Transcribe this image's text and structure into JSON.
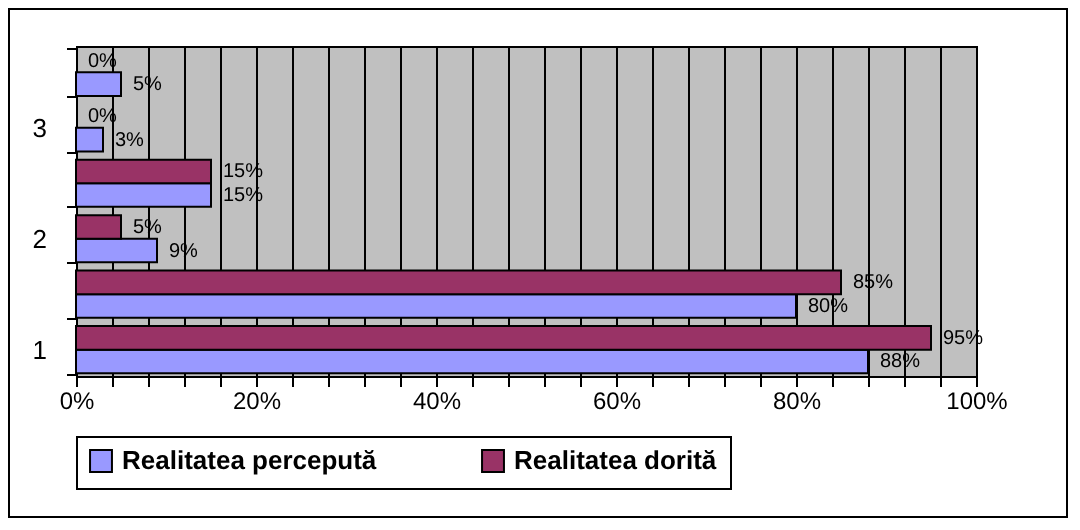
{
  "chart_data": {
    "type": "bar",
    "orientation": "horizontal",
    "categories": [
      null,
      "3",
      null,
      "2",
      null,
      "1"
    ],
    "series": [
      {
        "name": "Realitatea percepută",
        "color": "#9999ff",
        "values": [
          5,
          3,
          15,
          9,
          80,
          88
        ],
        "value_labels": [
          "5%",
          "3%",
          "15%",
          "9%",
          "80%",
          "88%"
        ]
      },
      {
        "name": "Realitatea dorită",
        "color": "#993366",
        "values": [
          0,
          0,
          15,
          5,
          85,
          95
        ],
        "value_labels": [
          "0%",
          "0%",
          "15%",
          "5%",
          "85%",
          "95%"
        ]
      }
    ],
    "xlim": [
      0,
      100
    ],
    "xticks": [
      {
        "value": 0,
        "label": "0%"
      },
      {
        "value": 4,
        "label": null
      },
      {
        "value": 8,
        "label": null
      },
      {
        "value": 12,
        "label": null
      },
      {
        "value": 16,
        "label": null
      },
      {
        "value": 20,
        "label": "20%"
      },
      {
        "value": 24,
        "label": null
      },
      {
        "value": 28,
        "label": null
      },
      {
        "value": 32,
        "label": null
      },
      {
        "value": 36,
        "label": null
      },
      {
        "value": 40,
        "label": "40%"
      },
      {
        "value": 44,
        "label": null
      },
      {
        "value": 48,
        "label": null
      },
      {
        "value": 52,
        "label": null
      },
      {
        "value": 56,
        "label": null
      },
      {
        "value": 60,
        "label": "60%"
      },
      {
        "value": 64,
        "label": null
      },
      {
        "value": 68,
        "label": null
      },
      {
        "value": 72,
        "label": null
      },
      {
        "value": 76,
        "label": null
      },
      {
        "value": 80,
        "label": "80%"
      },
      {
        "value": 84,
        "label": null
      },
      {
        "value": 88,
        "label": null
      },
      {
        "value": 92,
        "label": null
      },
      {
        "value": 96,
        "label": null
      },
      {
        "value": 100,
        "label": "100%"
      }
    ],
    "grid": "x",
    "legend": "bottom"
  }
}
